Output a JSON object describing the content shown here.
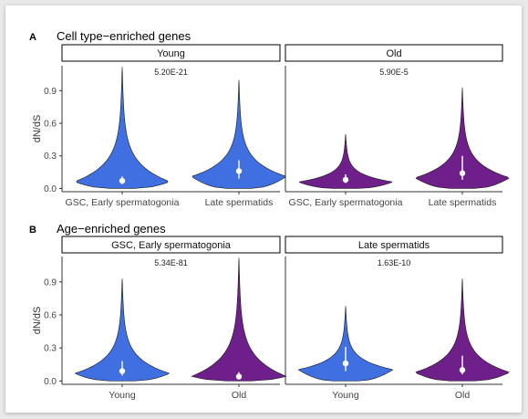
{
  "colors": {
    "young": "#3f6fe0",
    "old": "#6e1f8a",
    "dot": "#ffffff",
    "strip_bg": "#ffffff",
    "axis": "#333333"
  },
  "chart_data": [
    {
      "type": "violin",
      "panel_letter": "A",
      "title": "Cell type−enriched genes",
      "ylabel": "dN/dS",
      "ylim": [
        -0.03,
        1.13
      ],
      "yticks": [
        0.0,
        0.3,
        0.6,
        0.9
      ],
      "ytick_labels": [
        "0.0",
        "0.3",
        "0.6",
        "0.9"
      ],
      "facets": [
        {
          "strip": "Young",
          "pvalue": "5.20E-21",
          "categories": [
            "GSC, Early spermatogonia",
            "Late spermatids"
          ],
          "violins": [
            {
              "group": "Young",
              "color": "young",
              "min": 0.0,
              "max": 1.12,
              "median": 0.07,
              "q1": 0.04,
              "q3": 0.11
            },
            {
              "group": "Young",
              "color": "young",
              "min": 0.0,
              "max": 1.0,
              "median": 0.16,
              "q1": 0.09,
              "q3": 0.26
            }
          ]
        },
        {
          "strip": "Old",
          "pvalue": "5.90E-5",
          "categories": [
            "GSC, Early spermatogonia",
            "Late spermatids"
          ],
          "violins": [
            {
              "group": "Old",
              "color": "old",
              "min": 0.0,
              "max": 0.5,
              "median": 0.08,
              "q1": 0.05,
              "q3": 0.13
            },
            {
              "group": "Old",
              "color": "old",
              "min": 0.0,
              "max": 0.93,
              "median": 0.14,
              "q1": 0.08,
              "q3": 0.3
            }
          ]
        }
      ]
    },
    {
      "type": "violin",
      "panel_letter": "B",
      "title": "Age−enriched genes",
      "ylabel": "dN/dS",
      "ylim": [
        -0.03,
        1.13
      ],
      "yticks": [
        0.0,
        0.3,
        0.6,
        0.9
      ],
      "ytick_labels": [
        "0.0",
        "0.3",
        "0.6",
        "0.9"
      ],
      "facets": [
        {
          "strip": "GSC, Early spermatogonia",
          "pvalue": "5.34E-81",
          "categories": [
            "Young",
            "Old"
          ],
          "violins": [
            {
              "group": "Young",
              "color": "young",
              "min": 0.0,
              "max": 0.93,
              "median": 0.09,
              "q1": 0.05,
              "q3": 0.18
            },
            {
              "group": "Old",
              "color": "old",
              "min": 0.0,
              "max": 1.12,
              "median": 0.04,
              "q1": 0.02,
              "q3": 0.08
            }
          ]
        },
        {
          "strip": "Late spermatids",
          "pvalue": "1.63E-10",
          "categories": [
            "Young",
            "Old"
          ],
          "violins": [
            {
              "group": "Young",
              "color": "young",
              "min": 0.0,
              "max": 0.68,
              "median": 0.16,
              "q1": 0.09,
              "q3": 0.31
            },
            {
              "group": "Old",
              "color": "old",
              "min": 0.0,
              "max": 0.93,
              "median": 0.1,
              "q1": 0.06,
              "q3": 0.23
            }
          ]
        }
      ]
    }
  ]
}
